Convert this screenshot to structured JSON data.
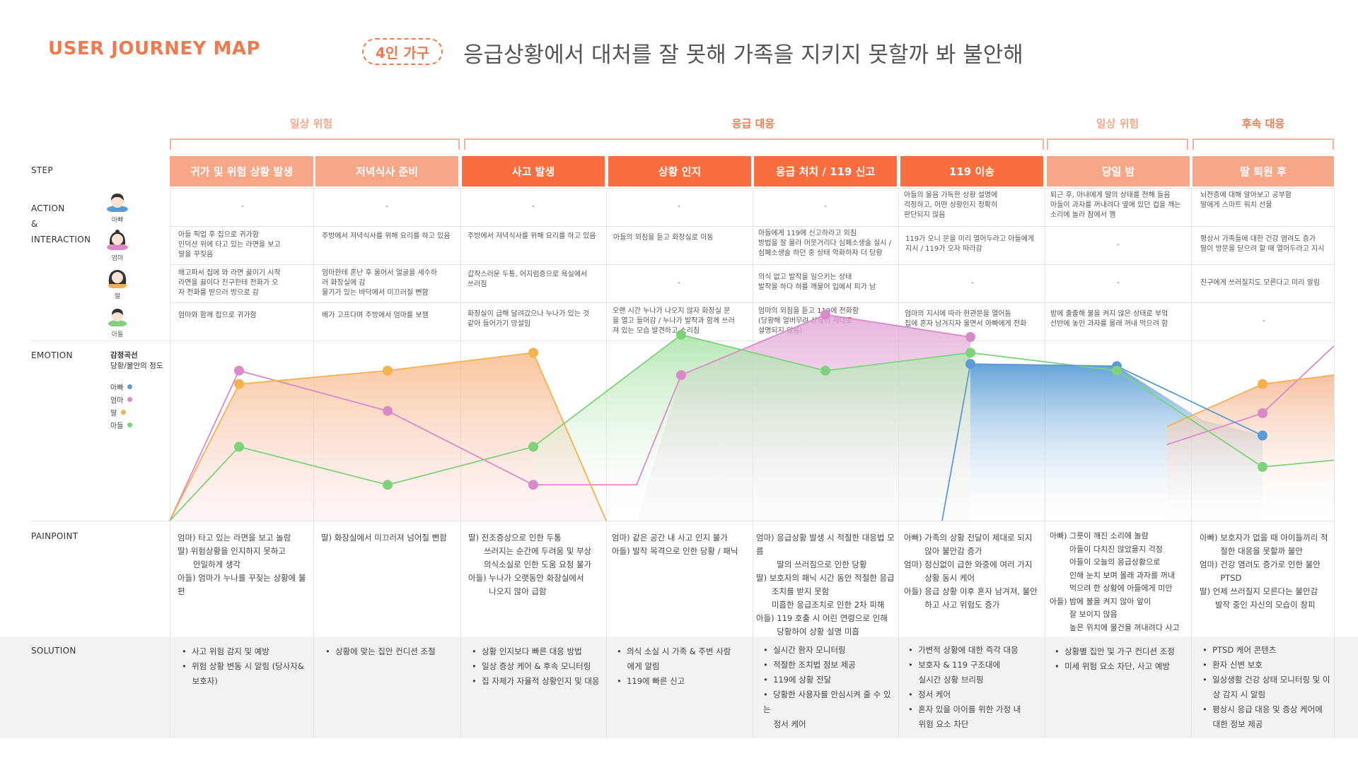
{
  "header": {
    "title": "USER JOURNEY MAP",
    "badge": "4인 가구",
    "headline": "응급상황에서 대처를 잘 못해 가족을 지키지 못할까 봐 불안해"
  },
  "phases": [
    {
      "label": "일상 위험",
      "color": "#f4a98c"
    },
    {
      "label": "응급 대응",
      "color": "#f07a4e"
    },
    {
      "label": "일상 위험",
      "color": "#f4a98c"
    },
    {
      "label": "후속 대응",
      "color": "#f07a4e"
    }
  ],
  "row_labels": {
    "step": "STEP",
    "action1": "ACTION",
    "action2": "&",
    "action3": "INTERACTION",
    "emotion": "EMOTION",
    "painpoint": "PAINPOINT",
    "solution": "SOLUTION"
  },
  "personas": [
    "아빠",
    "엄마",
    "딸",
    "아들"
  ],
  "steps": [
    "귀가 및 위험 상황 발생",
    "저녁식사 준비",
    "사고 발생",
    "상황 인지",
    "응급 처치 / 119 신고",
    "119 이송",
    "당일 밤",
    "딸 퇴원 후"
  ],
  "actions": [
    [
      "-",
      "-",
      "-",
      "-",
      "-",
      "아들의 울음 가득한 상황 설명에\n걱정하고, 어떤 상황인지 정확히\n판단되지 않음",
      "퇴근 후, 아내에게 딸의 상태를 전해 들음\n아들이 과자를 꺼내려다 옆에 있던 컵을 깨는\n소리에 놀라 잠에서 깸",
      "뇌전증에 대해 알아보고 공부함\n딸에게 스마트 워치 선물"
    ],
    [
      "아들 픽업 후 집으로 귀가함\n인덕션 위에 타고 있는 라면을 보고\n딸을 꾸짖음",
      "주방에서 저녁식사를 위해 요리를 하고 있음",
      "주방에서 저녁식사를 위해 요리를 하고 있음",
      "아들의 외침을 듣고 화장실로 이동",
      "아들에게 119에 신고하라고 외침\n방법을 잘 몰라 머뭇거리다 심폐소생술 실시 /\n심폐소생술 하던 중 상태 악화하자 더 당황",
      "119가 오니 문을 미리 열어두라고 아들에게\n지시 / 119가 오자 따라감",
      "-",
      "평상시 가족들에 대한 건강 염려도 증가\n딸이 방문을 닫으려 할 때 열어두라고 지시"
    ],
    [
      "배고파서 집에 와 라면 끓이기 시작\n라면을 끓이다 친구한테 전화가 오\n자 전화를 받으러 방으로 감",
      "엄마한테 혼난 후 울어서 얼굴을 세수하\n러 화장실에 감\n물기가 있는 바닥에서 미끄러질 뻔함",
      "갑작스러운 두통, 어지럼증으로 욕실에서\n쓰러짐",
      "-",
      "의식 없고 발작을 일으키는 상태\n발작을 하다 혀를 깨물어 입에서 피가 남",
      "-",
      "-",
      "친구에게 쓰러질지도 모른다고 미리 알림"
    ],
    [
      "엄마와 함께 집으로 귀가함",
      "배가 고프다며 주방에서 엄마를 보챔",
      "화장실이 급해 달려갔으나 누나가 있는 것\n같아 들어가기 망설임",
      "오랜 시간 누나가 나오지 않자 화장실 문\n을 열고 들어감 / 누나가 발작과 함께 쓰러\n져 있는 모습 발견하고 소리침",
      "엄마의 외침을 듣고 119에 전화함\n(당황해 얼버무려 상황이 제대로\n설명되지 않음)",
      "엄마의 지시에 따라 현관문을 열어둠\n집에 혼자 남겨지자 울면서 아빠에게 전화",
      "밤에 출출해 불을 켜지 않은 상태로 부엌\n선반에 놓인 과자를 몰래 꺼내 먹으려 함",
      "-"
    ]
  ],
  "emotion": {
    "label": "감정곡선",
    "sublabel": "당황/불안의 정도",
    "legend": [
      {
        "name": "아빠",
        "color": "#5b9bd5"
      },
      {
        "name": "엄마",
        "color": "#d98ac7"
      },
      {
        "name": "딸",
        "color": "#f5b04f"
      },
      {
        "name": "아들",
        "color": "#7ed27c"
      }
    ]
  },
  "chart_data": {
    "type": "line",
    "series": [
      {
        "name": "아빠",
        "color": "#5b9bd5",
        "values": [
          null,
          null,
          null,
          null,
          null,
          70,
          69,
          38
        ]
      },
      {
        "name": "엄마",
        "color": "#d98ac7",
        "values": [
          67,
          49,
          16,
          65,
          92,
          82,
          null,
          48
        ]
      },
      {
        "name": "딸",
        "color": "#f5b04f",
        "values": [
          61,
          67,
          75,
          null,
          null,
          null,
          null,
          61
        ]
      },
      {
        "name": "아들",
        "color": "#7ed27c",
        "values": [
          33,
          16,
          33,
          83,
          67,
          75,
          67,
          24
        ]
      }
    ],
    "ylim": [
      0,
      100
    ]
  },
  "painpoints": [
    "엄마) 타고 있는 라면을 보고 놀람\n딸) 위험상황을 인지하지 못하고\n      안일하게 생각\n아들) 엄마가 누나를 꾸짖는 상황에 불편",
    "딸) 화장실에서 미끄러져 넘어질 뻔함",
    "딸) 전조증상으로 인한 두통\n      쓰러지는 순간에 두려움 및 부상\n      의식소실로 인한 도움 요청 불가\n아들) 누나가 오랫동안 화장실에서\n        나오지 않아 급함",
    "엄마) 같은 공간 내 사고 인지 불가\n아들) 발작 목격으로 인한 당황 / 패닉",
    "엄마) 응급상황 발생 시 적절한 대응법 모름\n        딸의 쓰러짐으로 인한 당황\n딸) 보호자의 패닉 시간 동안 적절한 응급\n      조치를 받지 못함\n      미흡한 응급조치로 인한 2차 피해\n아들) 119 호출 시 어린 연령으로 인해\n        당황하여 상황 설명 미흡",
    "아빠) 가족의 상황 전달이 제대로 되지\n        않아 불안감 증가\n엄마) 정신없이 급한 와중에 여러 가지\n        상황 동시 케어\n아들) 응급 상황 이후 혼자 남겨져, 불안\n        하고 사고 위험도 증가",
    "아빠) 그릇이 깨진 소리에 놀람\n        아들이 다치진 않았을지 걱정\n        아들이 오늘의 응급상황으로\n        인해 눈치 보며 몰래 과자를 꺼내\n        먹으려 한 상황에 아들에게 미안\n아들) 밤에 불을 켜지 않아 앞이\n        잘 보이지 않음\n        높은 위치에 물건을 꺼내려다 사고",
    "아빠) 보호자가 없을 때 아이들끼리 적\n        절한 대응을 못할까 불안\n엄마) 건강 염려도 증가로 인한 불안\n        PTSD\n딸) 언제 쓰러질지 모른다는 불안감\n      발작 중인 자신의 모습이 창피"
  ],
  "solutions": [
    "•  사고 위험 감지 및 예방\n•  위험 상황 변동 시 알림 (당사자&\n    보호자)",
    "•  상황에 맞는 집안 컨디션 조절",
    "•  상황 인지보다 빠른 대응 방법\n•  일상 증상 케어 & 후속 모니터링\n•  집 자체가 자율적 상황인지 및 대응",
    "•  의식 소실 시 가족 & 주변 사람\n    에게 알림\n•  119에 빠른 신고",
    "•  실시간 환자 모니터링\n•  적절한 조치법 정보 제공\n•  119에 상황 전달\n•  당황한 사용자를 안심시켜 줄 수 있는\n    정서 케어",
    "•  가변적 상황에 대한 즉각 대응\n•  보호자 & 119 구조대에\n    실시간 상황 브리핑\n•  정서 케어\n•  혼자 있을 아이를 위한 가정 내\n    위험 요소 차단",
    "•  상황별 집안 및 가구 컨디션 조정\n•  미세 위험 요소 차단, 사고 예방",
    "•  PTSD 케어 콘텐츠\n•  환자 신변 보호\n•  일상생활 건강 상태 모니터링 및 이\n    상 감지 시 알림\n•  평상시 응급 대응 및 증상 케어에\n    대한 정보 제공"
  ]
}
